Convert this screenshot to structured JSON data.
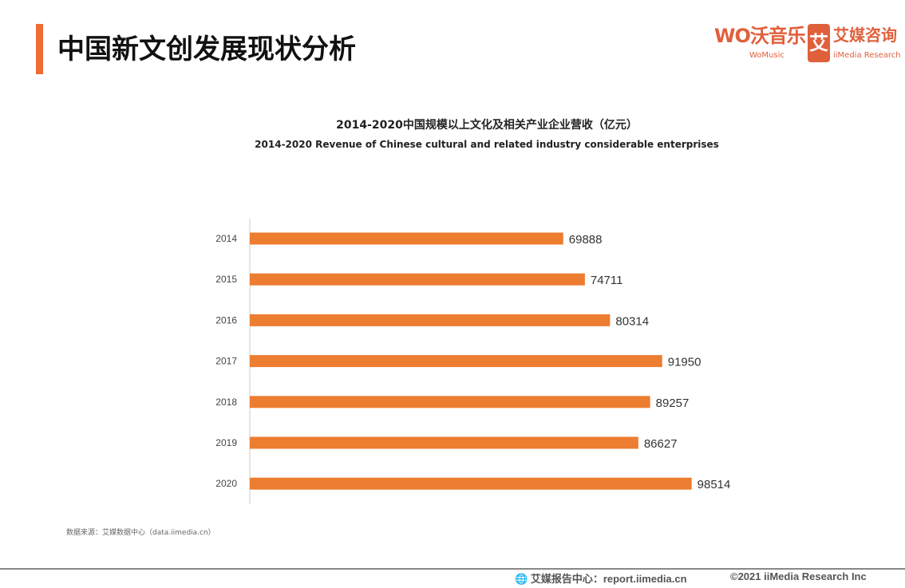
{
  "header": {
    "title": "中国新文创发展现状分析",
    "logo_wo": "WO沃音乐",
    "logo_wo_sub": "WoMusic",
    "logo_ii": "艾媒咨询",
    "logo_ii_sub": "iiMedia Research",
    "logo_ii_mark": "艾"
  },
  "colors": {
    "accent": "#f06a34",
    "bar": "#ed7d31"
  },
  "chart_data": {
    "type": "bar",
    "orientation": "horizontal",
    "title": "2014-2020中国规模以上文化及相关产业企业营收（亿元）",
    "subtitle": "2014-2020 Revenue of Chinese cultural and related industry considerable enterprises",
    "categories": [
      "2014",
      "2015",
      "2016",
      "2017",
      "2018",
      "2019",
      "2020"
    ],
    "values": [
      69888,
      74711,
      80314,
      91950,
      89257,
      86627,
      98514
    ],
    "xlim": [
      0,
      100000
    ],
    "grid": false
  },
  "source": "数据来源：艾媒数据中心（data.iimedia.cn）",
  "footer": {
    "report": "艾媒报告中心：report.iimedia.cn",
    "copyright": "©2021  iiMedia Research  Inc"
  }
}
